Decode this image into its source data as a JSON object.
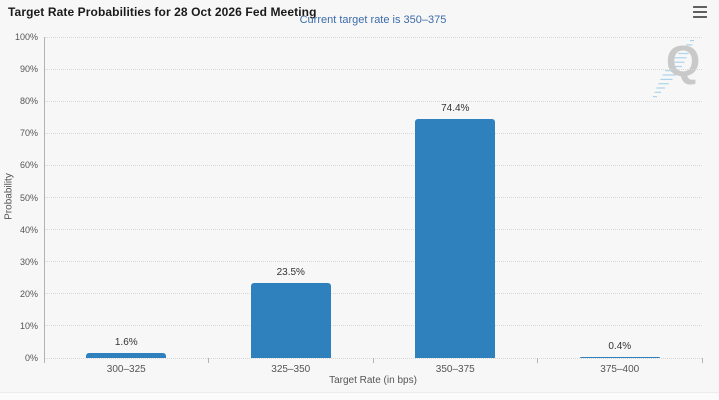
{
  "header": {
    "title": "Target Rate Probabilities for 28 Oct 2026 Fed Meeting",
    "subtitle": "Current target rate is 350–375"
  },
  "icons": {
    "menu": "hamburger-icon",
    "watermark": "quantower-q-logo"
  },
  "watermark": {
    "letter": "Q"
  },
  "colors": {
    "background": "#f7f7f7",
    "bar": "#2e81bd",
    "subtitle_text": "#3d6ca8",
    "title_text": "#1a1a1a",
    "axis_text": "#555555",
    "gridline": "#d8d8d8",
    "axis_line": "#b3b3b3",
    "watermark_gray": "#c9c9c9",
    "watermark_blue": "#9ecfe8"
  },
  "chart_data": {
    "type": "bar",
    "title": "Target Rate Probabilities for 28 Oct 2026 Fed Meeting",
    "subtitle": "Current target rate is 350–375",
    "categories": [
      "300–325",
      "325–350",
      "350–375",
      "375–400"
    ],
    "values": [
      1.6,
      23.5,
      74.4,
      0.4
    ],
    "value_labels": [
      "1.6%",
      "23.5%",
      "74.4%",
      "0.4%"
    ],
    "xlabel": "Target Rate (in bps)",
    "ylabel": "Probability",
    "ylim": [
      0,
      100
    ],
    "ytick_step": 10,
    "ytick_labels": [
      "0%",
      "10%",
      "20%",
      "30%",
      "40%",
      "50%",
      "60%",
      "70%",
      "80%",
      "90%",
      "100%"
    ],
    "grid": "dotted-horizontal",
    "legend": "none",
    "bar_color": "#2e81bd"
  }
}
